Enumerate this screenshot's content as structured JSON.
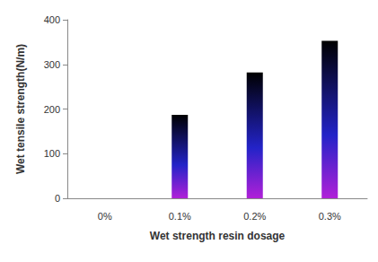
{
  "chart_data": {
    "type": "bar",
    "categories": [
      "0%",
      "0.1%",
      "0.2%",
      "0.3%"
    ],
    "values": [
      0,
      187,
      282,
      353
    ],
    "color": "#2323c8",
    "x_label": "Wet strength resin dosage",
    "y_label": "Wet tensile strength(N/m)",
    "ylim": [
      0,
      400
    ],
    "yticks": [
      0,
      100,
      200,
      300,
      400
    ],
    "grid": false
  }
}
